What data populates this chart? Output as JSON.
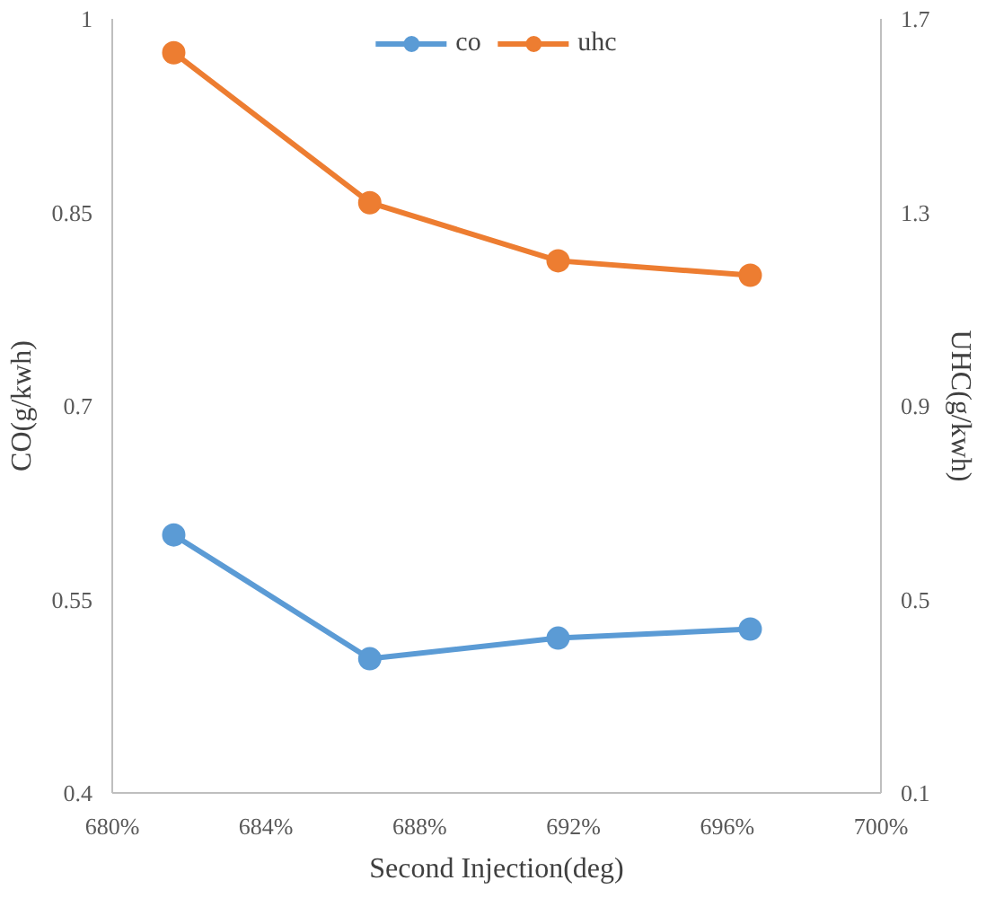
{
  "chart_data": {
    "type": "line",
    "xlabel": "Second Injection(deg)",
    "ylabel": "CO(g/kwh)",
    "y2label": "UHC(g/kwh)",
    "x": [
      681.6,
      686.7,
      691.6,
      696.6
    ],
    "series": [
      {
        "name": "co",
        "color": "#5b9bd5",
        "values": [
          0.6,
          0.504,
          0.52,
          0.527
        ]
      },
      {
        "name": "uhc",
        "color": "#ed7d31",
        "values": [
          1.63,
          1.32,
          1.2,
          1.17
        ],
        "axis": "y2"
      }
    ],
    "xlim": [
      680,
      700
    ],
    "xticks": [
      {
        "value": 680,
        "label": "680%"
      },
      {
        "value": 684,
        "label": "684%"
      },
      {
        "value": 688,
        "label": "688%"
      },
      {
        "value": 692,
        "label": "692%"
      },
      {
        "value": 696,
        "label": "696%"
      },
      {
        "value": 700,
        "label": "700%"
      }
    ],
    "ylim": [
      0.4,
      1
    ],
    "yticks": [
      0.4,
      0.55,
      0.7,
      0.85,
      1
    ],
    "y2lim": [
      0.1,
      1.7
    ],
    "y2ticks": [
      0.1,
      0.5,
      0.9,
      1.3,
      1.7
    ],
    "legend": "top",
    "marker": "circle",
    "line_style": "solid",
    "grid": false
  }
}
